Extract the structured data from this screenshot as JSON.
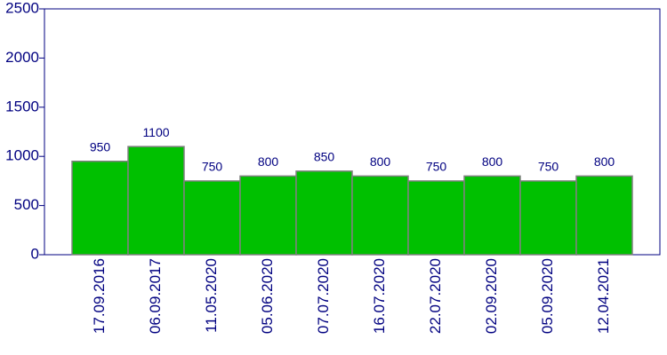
{
  "chart_data": {
    "type": "bar",
    "categories": [
      "17.09.2016",
      "06.09.2017",
      "11.05.2020",
      "05.06.2020",
      "07.07.2020",
      "16.07.2020",
      "22.07.2020",
      "02.09.2020",
      "05.09.2020",
      "12.04.2021"
    ],
    "values": [
      950,
      1100,
      750,
      800,
      850,
      800,
      750,
      800,
      750,
      800
    ],
    "color": "#00c000",
    "ylim": [
      0,
      2500
    ],
    "yticks": [
      0,
      500,
      1000,
      1500,
      2000,
      2500
    ]
  }
}
